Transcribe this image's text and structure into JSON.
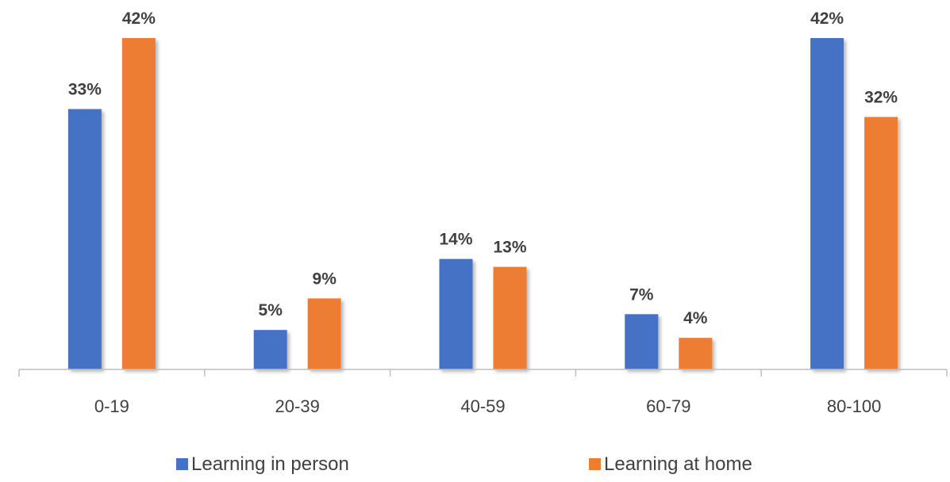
{
  "chart_data": {
    "type": "bar",
    "title": "",
    "xlabel": "",
    "ylabel": "",
    "categories": [
      "0-19",
      "20-39",
      "40-59",
      "60-79",
      "80-100"
    ],
    "series": [
      {
        "name": "Learning in person",
        "color": "#4472C4",
        "values": [
          33,
          5,
          14,
          7,
          42
        ],
        "labels": [
          "33%",
          "5%",
          "14%",
          "7%",
          "42%"
        ]
      },
      {
        "name": "Learning at home",
        "color": "#ED7D31",
        "values": [
          42,
          9,
          13,
          4,
          32
        ],
        "labels": [
          "42%",
          "9%",
          "13%",
          "4%",
          "32%"
        ]
      }
    ],
    "ylim": [
      0,
      42
    ],
    "grid": false,
    "legend": "bottom"
  }
}
